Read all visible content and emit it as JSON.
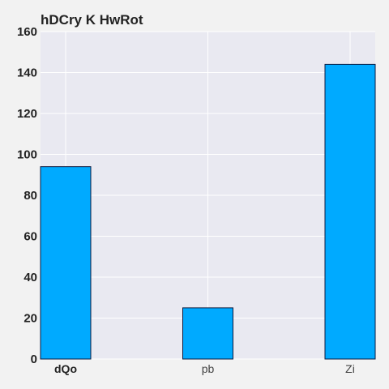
{
  "chart_data": {
    "type": "bar",
    "title": "hDCry K HwRot",
    "xlabel": "",
    "ylabel": "",
    "categories": [
      "dQo",
      "pb",
      "Zi"
    ],
    "values": [
      94,
      25,
      144
    ],
    "ylim": [
      0,
      160
    ],
    "yticks": [
      0,
      20,
      40,
      60,
      80,
      100,
      120,
      140,
      160
    ],
    "grid": true,
    "colors": {
      "bar": "#00aaff",
      "bar_edge": "#0a1a40",
      "plot_background": "#e9e9f1",
      "grid": "#ffffff"
    }
  }
}
